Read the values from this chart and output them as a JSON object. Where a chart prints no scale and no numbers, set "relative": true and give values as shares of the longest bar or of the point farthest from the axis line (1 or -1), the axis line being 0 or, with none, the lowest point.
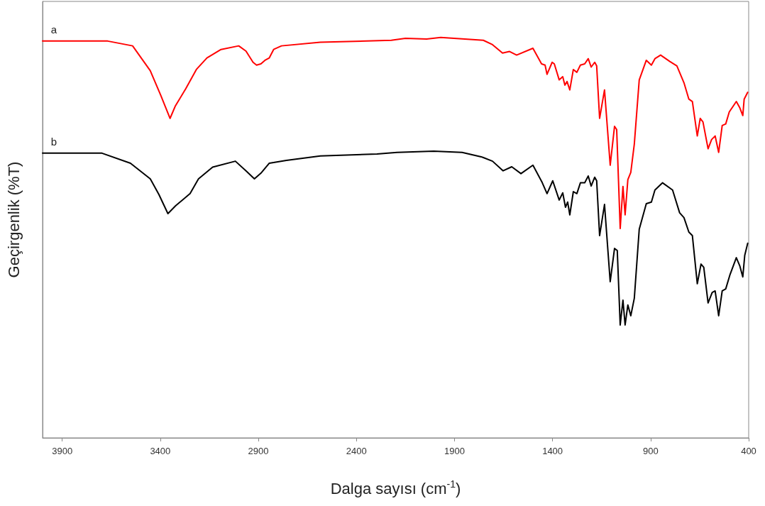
{
  "chart_data": {
    "type": "line",
    "relative": true,
    "xlabel": "Dalga sayısı (cm$^{-1}$)",
    "ylabel": "Geçirgenlik (%T)",
    "xlim": [
      4000,
      400
    ],
    "xticks": [
      3900,
      3400,
      2900,
      2400,
      1900,
      1400,
      900,
      400
    ],
    "grid": false,
    "legend": false,
    "marker": "none",
    "line_style": "solid",
    "tick_labels": "x",
    "series": [
      {
        "name": "a",
        "color": "#ff0000",
        "x": [
          4000,
          3668,
          3541,
          3451,
          3397,
          3350,
          3324,
          3270,
          3216,
          3162,
          3090,
          3000,
          2963,
          2927,
          2909,
          2887,
          2866,
          2844,
          2822,
          2782,
          2584,
          2222,
          2150,
          2042,
          1970,
          1753,
          1706,
          1655,
          1619,
          1583,
          1500,
          1456,
          1438,
          1428,
          1402,
          1391,
          1366,
          1348,
          1337,
          1326,
          1312,
          1294,
          1276,
          1258,
          1236,
          1218,
          1203,
          1185,
          1175,
          1160,
          1135,
          1106,
          1084,
          1073,
          1055,
          1041,
          1030,
          1016,
          1001,
          983,
          958,
          922,
          896,
          878,
          849,
          802,
          766,
          730,
          705,
          687,
          662,
          647,
          633,
          607,
          589,
          571,
          553,
          535,
          517,
          499,
          463,
          445,
          430,
          423,
          405
        ],
        "values": [
          0.991,
          0.991,
          0.979,
          0.917,
          0.855,
          0.798,
          0.828,
          0.872,
          0.92,
          0.949,
          0.97,
          0.979,
          0.966,
          0.938,
          0.931,
          0.934,
          0.943,
          0.949,
          0.97,
          0.979,
          0.988,
          0.993,
          0.998,
          0.996,
          1.0,
          0.993,
          0.982,
          0.961,
          0.965,
          0.956,
          0.973,
          0.934,
          0.931,
          0.908,
          0.938,
          0.934,
          0.894,
          0.902,
          0.881,
          0.89,
          0.869,
          0.92,
          0.913,
          0.931,
          0.934,
          0.947,
          0.926,
          0.938,
          0.929,
          0.798,
          0.869,
          0.681,
          0.778,
          0.77,
          0.523,
          0.628,
          0.557,
          0.645,
          0.663,
          0.734,
          0.894,
          0.943,
          0.931,
          0.947,
          0.956,
          0.94,
          0.929,
          0.887,
          0.846,
          0.84,
          0.754,
          0.798,
          0.789,
          0.722,
          0.745,
          0.754,
          0.713,
          0.78,
          0.784,
          0.814,
          0.84,
          0.824,
          0.805,
          0.846,
          0.863
        ]
      },
      {
        "name": "b",
        "color": "#000000",
        "x": [
          4000,
          3697,
          3552,
          3451,
          3407,
          3361,
          3321,
          3248,
          3205,
          3133,
          3017,
          2959,
          2920,
          2887,
          2844,
          2757,
          2584,
          2295,
          2193,
          2006,
          1861,
          1764,
          1753,
          1706,
          1652,
          1608,
          1561,
          1500,
          1453,
          1428,
          1399,
          1366,
          1348,
          1334,
          1323,
          1312,
          1294,
          1276,
          1258,
          1236,
          1218,
          1203,
          1185,
          1175,
          1160,
          1135,
          1106,
          1084,
          1070,
          1055,
          1041,
          1030,
          1016,
          1001,
          983,
          958,
          922,
          896,
          878,
          839,
          788,
          752,
          730,
          705,
          687,
          662,
          643,
          629,
          607,
          586,
          571,
          553,
          535,
          517,
          495,
          463,
          445,
          430,
          420,
          405
        ],
        "values": [
          0.711,
          0.711,
          0.686,
          0.647,
          0.608,
          0.56,
          0.58,
          0.61,
          0.647,
          0.676,
          0.691,
          0.665,
          0.647,
          0.661,
          0.686,
          0.693,
          0.704,
          0.709,
          0.713,
          0.716,
          0.713,
          0.702,
          0.7,
          0.691,
          0.667,
          0.677,
          0.66,
          0.681,
          0.638,
          0.61,
          0.642,
          0.594,
          0.612,
          0.576,
          0.589,
          0.557,
          0.615,
          0.61,
          0.637,
          0.637,
          0.654,
          0.629,
          0.651,
          0.642,
          0.505,
          0.583,
          0.39,
          0.473,
          0.468,
          0.282,
          0.344,
          0.282,
          0.332,
          0.305,
          0.349,
          0.521,
          0.585,
          0.589,
          0.619,
          0.637,
          0.619,
          0.562,
          0.55,
          0.514,
          0.505,
          0.385,
          0.434,
          0.426,
          0.337,
          0.363,
          0.367,
          0.305,
          0.367,
          0.372,
          0.408,
          0.45,
          0.429,
          0.402,
          0.456,
          0.486
        ]
      }
    ]
  }
}
